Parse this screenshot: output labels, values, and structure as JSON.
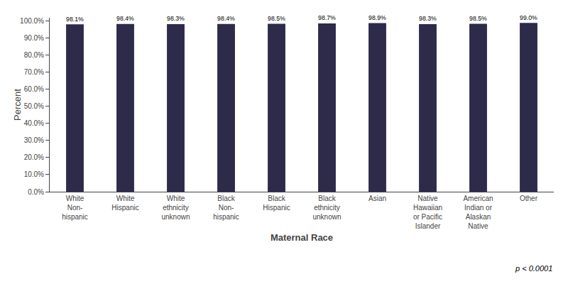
{
  "chart_data": {
    "type": "bar",
    "categories": [
      "White\nNon-\nhispanic",
      "White\nHispanic",
      "White\nethnicity\nunknown",
      "Black\nNon-\nhispanic",
      "Black\nHispanic",
      "Black\nethnicity\nunknown",
      "Asian",
      "Native\nHawaiian\nor Pacific\nIslander",
      "American\nIndian or\nAlaskan\nNative",
      "Other"
    ],
    "values": [
      98.1,
      98.4,
      98.3,
      98.4,
      98.5,
      98.7,
      98.9,
      98.3,
      98.5,
      99.0
    ],
    "value_labels": [
      "98.1%",
      "98.4%",
      "98.3%",
      "98.4%",
      "98.5%",
      "98.7%",
      "98.9%",
      "98.3%",
      "98.5%",
      "99.0%"
    ],
    "data_labels": true,
    "color": "#2E2A4A",
    "xlabel": "Maternal Race",
    "ylabel": "Percent",
    "annotations": [
      "p < 0.0001"
    ],
    "ylim": [
      0,
      102
    ],
    "yticks": [
      {
        "value": 0,
        "label": "0.0%"
      },
      {
        "value": 10,
        "label": "10.0%"
      },
      {
        "value": 20,
        "label": "20.0%"
      },
      {
        "value": 30,
        "label": "30.0%"
      },
      {
        "value": 40,
        "label": "40.0%"
      },
      {
        "value": 50,
        "label": "50.0%"
      },
      {
        "value": 60,
        "label": "60.0%"
      },
      {
        "value": 70,
        "label": "70.0%"
      },
      {
        "value": 80,
        "label": "80.0%"
      },
      {
        "value": 90,
        "label": "90.0%"
      },
      {
        "value": 100,
        "label": "100.0%"
      }
    ],
    "grid": false
  }
}
